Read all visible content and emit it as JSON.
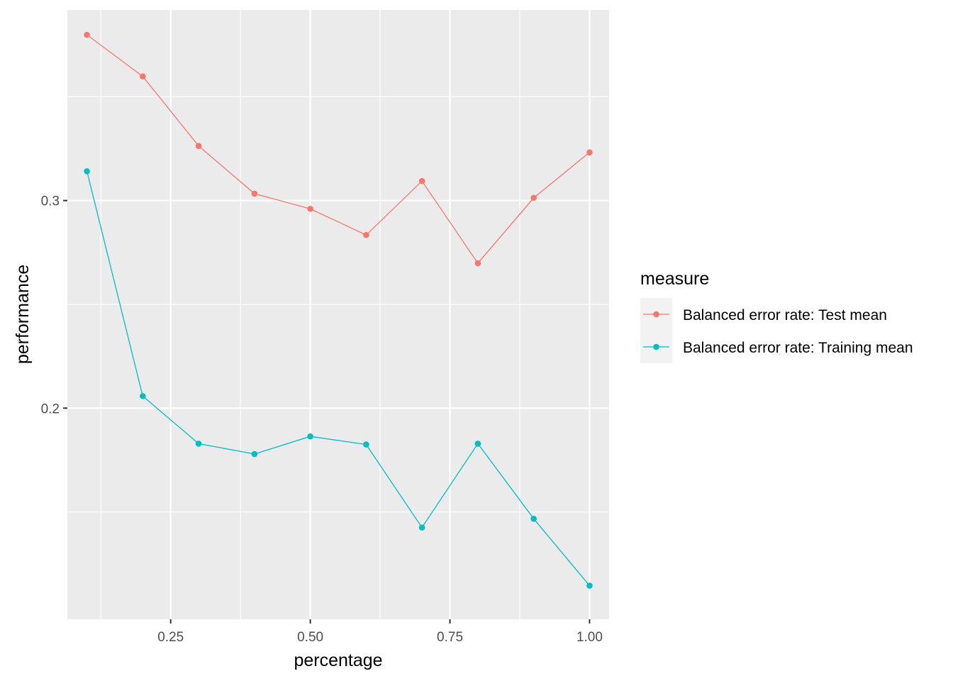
{
  "chart_data": {
    "type": "line",
    "xlabel": "percentage",
    "ylabel": "performance",
    "xlim": [
      0.065,
      1.035
    ],
    "ylim": [
      0.0983,
      0.3918
    ],
    "x_ticks": [
      0.25,
      0.5,
      0.75,
      1.0
    ],
    "x_tick_labels": [
      "0.25",
      "0.50",
      "0.75",
      "1.00"
    ],
    "x_minor_ticks": [
      0.125,
      0.375,
      0.625,
      0.875
    ],
    "y_ticks": [
      0.2,
      0.3
    ],
    "y_tick_labels": [
      "0.2",
      "0.3"
    ],
    "y_minor_ticks": [
      0.15,
      0.25,
      0.35
    ],
    "grid": true,
    "panel_color": "#ebebeb",
    "grid_color": "#ffffff",
    "legend": {
      "title": "measure",
      "position": "right",
      "key_background": "#f2f2f2"
    },
    "x": [
      0.1,
      0.2,
      0.3,
      0.4,
      0.5,
      0.6,
      0.7,
      0.8,
      0.9,
      1.0
    ],
    "series": [
      {
        "name": "Balanced error rate: Test mean",
        "color": "#f8766d",
        "values": [
          0.3798,
          0.3598,
          0.3263,
          0.3033,
          0.296,
          0.2834,
          0.3094,
          0.2698,
          0.3013,
          0.3232
        ]
      },
      {
        "name": "Balanced error rate: Training mean",
        "color": "#00bfc4",
        "values": [
          0.3141,
          0.2058,
          0.1829,
          0.1779,
          0.1864,
          0.1825,
          0.1425,
          0.1829,
          0.1467,
          0.1145
        ]
      }
    ]
  }
}
